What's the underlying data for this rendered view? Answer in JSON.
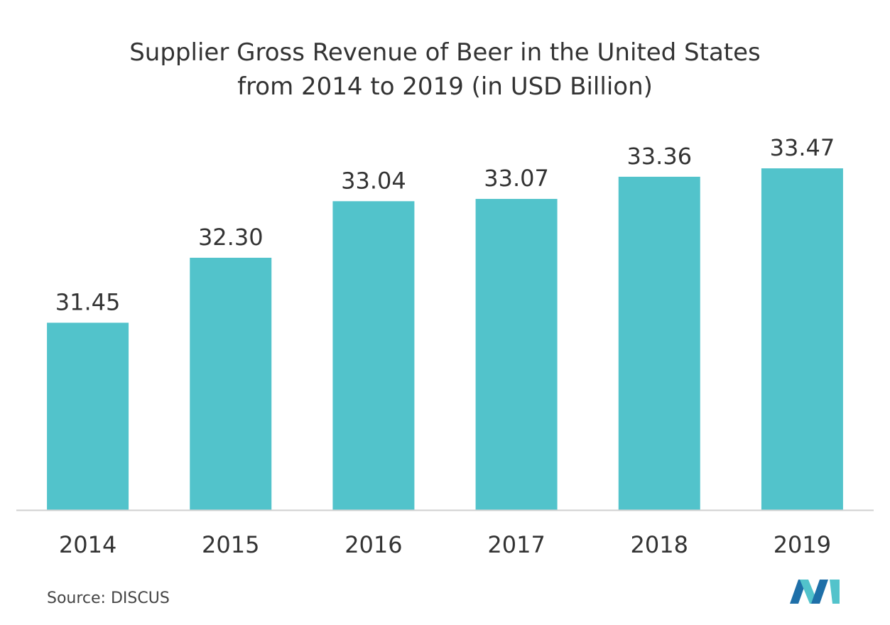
{
  "chart_data": {
    "type": "bar",
    "title": "Supplier Gross Revenue of Beer in the United States from 2014 to 2019 (in USD Billion)",
    "title_lines": [
      "Supplier Gross Revenue of Beer in the United States",
      "from 2014 to 2019 (in USD Billion)"
    ],
    "categories": [
      "2014",
      "2015",
      "2016",
      "2017",
      "2018",
      "2019"
    ],
    "values": [
      31.45,
      32.3,
      33.04,
      33.07,
      33.36,
      33.47
    ],
    "value_labels": [
      "31.45",
      "32.30",
      "33.04",
      "33.07",
      "33.36",
      "33.47"
    ],
    "xlabel": "",
    "ylabel": "",
    "ylim": [
      29.0,
      34.0
    ],
    "grid": false,
    "legend": "none",
    "bar_color": "#52c3cb",
    "axis_color": "#d0d0d0"
  },
  "footer": {
    "source": "Source: DISCUS"
  },
  "logo": {
    "icon": "mordor-intelligence-logo-icon",
    "colors": [
      "#1e6fa8",
      "#52c3cb"
    ]
  }
}
